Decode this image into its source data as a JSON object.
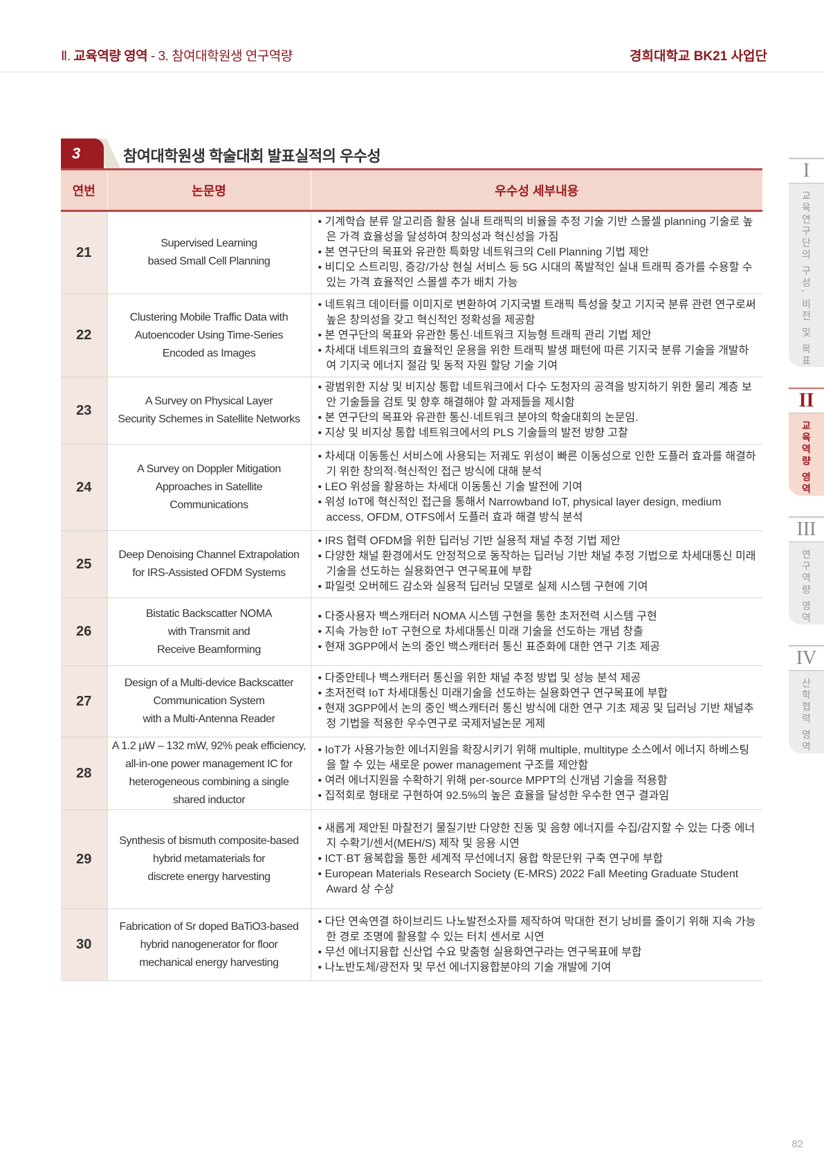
{
  "header": {
    "crumb_roman": "Ⅱ.",
    "crumb_section": "교육역량 영역",
    "crumb_rest": " - 3. 참여대학원생 연구역량",
    "org": "경희대학교 BK21 사업단"
  },
  "section": {
    "number": "3",
    "title": "참여대학원생 학술대회 발표실적의 우수성"
  },
  "table": {
    "headers": [
      "연번",
      "논문명",
      "우수성 세부내용"
    ],
    "rows": [
      {
        "no": "21",
        "title": "Supervised Learning\nbased Small Cell Planning",
        "details": [
          "기계학습 분류 알고리즘 활용 실내 트래픽의 비율을 추정 기술 기반 스몰셀 planning 기술로 높은 가격 효율성을 달성하여 창의성과 혁신성을 가짐",
          "본 연구단의 목표와 유관한 특화망 네트워크의 Cell Planning 기법 제안",
          "비디오 스트리밍, 증강/가상 현실 서비스 등 5G 시대의 폭발적인 실내 트래픽 증가를 수용할 수 있는 가격 효율적인 스몰셀 추가 배치 가능"
        ]
      },
      {
        "no": "22",
        "title": "Clustering Mobile Traffic Data with\nAutoencoder Using Time-Series\nEncoded as Images",
        "details": [
          "네트워크 데이터를 이미지로 변환하여 기지국별 트래픽 특성을 찾고 기지국 분류 관련 연구로써 높은 창의성을 갖고 혁신적인 정확성을 제공함",
          "본 연구단의 목표와 유관한 통신·네트워크 지능형 트래픽 관리 기법 제안",
          "차세대 네트워크의 효율적인 운용을 위한 트래픽 발생 패턴에 따른 기지국 분류 기술을 개발하여 기지국 에너지 절감 및 동적 자원 할당 기술 기여"
        ]
      },
      {
        "no": "23",
        "title": "A Survey on Physical Layer\nSecurity Schemes in Satellite Networks",
        "details": [
          "광범위한 지상 및 비지상 통합 네트워크에서 다수 도청자의 공격을 방지하기 위한 물리 계층 보안 기술들을 검토 및 향후 해결해야 할 과제들을 제시함",
          "본 연구단의 목표와 유관한 통신·네트워크 분야의 학술대회의 논문임.",
          "지상 및 비지상 통합 네트워크에서의 PLS 기술들의 발전 방향 고찰"
        ]
      },
      {
        "no": "24",
        "title": "A Survey on Doppler Mitigation\nApproaches in Satellite\nCommunications",
        "details": [
          "차세대 이동통신 서비스에 사용되는 저궤도 위성이 빠른 이동성으로 인한 도플러 효과를 해결하기 위한 창의적·혁신적인 접근 방식에 대해 분석",
          "LEO 위성을 활용하는 차세대 이동통신 기술 발전에 기여",
          "위성 IoT에 혁신적인 접근을 통해서 Narrowband IoT, physical layer design, medium access, OFDM, OTFS에서 도플러 효과 해결 방식 분석"
        ]
      },
      {
        "no": "25",
        "title": "Deep Denoising Channel Extrapolation\nfor IRS-Assisted OFDM Systems",
        "details": [
          "IRS 협력 OFDM을 위한 딥러닝 기반 실용적 채널 추정 기법 제안",
          "다양한 채널 환경에서도 안정적으로 동작하는 딥러닝 기반 채널 추정 기법으로 차세대통신 미래기술을 선도하는 실용화연구 연구목표에 부합",
          "파일럿 오버헤드 감소와 실용적 딥러닝 모델로 실제 시스템 구현에 기여"
        ]
      },
      {
        "no": "26",
        "title": "Bistatic Backscatter NOMA\nwith Transmit and\nReceive Beamforming",
        "details": [
          "다중사용자 백스캐터러 NOMA 시스템 구현을 통한 초저전력 시스템 구현",
          "지속 가능한 IoT 구현으로 차세대통신 미래 기술을 선도하는 개념 창출",
          "현재 3GPP에서 논의 중인 백스캐터러 통신 표준화에 대한 연구 기초 제공"
        ]
      },
      {
        "no": "27",
        "title": "Design of a Multi-device Backscatter\nCommunication System\nwith a Multi-Antenna Reader",
        "details": [
          "다중안테나 백스캐터러 통신을 위한 채널 추정 방법 및 성능 분석 제공",
          "초저전력 IoT 차세대통신 미래기술을 선도하는 실용화연구 연구목표에 부합",
          "현재 3GPP에서 논의 중인 백스캐터러 통신 방식에 대한 연구 기초 제공 및 딥러닝 기반 채널추정 기법을 적용한 우수연구로 국제저널논문 게제"
        ]
      },
      {
        "no": "28",
        "title": "A 1.2 μW – 132 mW, 92% peak efficiency,\nall-in-one power management IC for\nheterogeneous combining a single\nshared inductor",
        "details": [
          "IoT가 사용가능한 에너지원을 확장시키기 위해 multiple, multitype 소스에서 에너지 하베스팅을 할 수 있는 새로운 power management 구조를 제안함",
          "여러 에너지원을 수확하기 위해 per-source MPPT의 신개념 기술을 적용함",
          "집적회로 형태로 구현하여 92.5%의 높은 효율을 달성한 우수한 연구 결과임"
        ]
      },
      {
        "no": "29",
        "title": "Synthesis of bismuth composite-based\nhybrid metamaterials for\ndiscrete energy harvesting",
        "details": [
          "새롭게 제안된 마찰전기 물질기반 다양한 진동 및 음향 에너지를 수집/감지할 수 있는 다중 에너지 수확기/센서(MEH/S) 제작 및 응용 시연",
          "ICT·BT 융복합을 통한 세계적 무선에너지 융합 학문단위 구축 연구에 부합",
          "European Materials Research Society (E-MRS) 2022 Fall Meeting Graduate Student Award 상 수상"
        ]
      },
      {
        "no": "30",
        "title": "Fabrication of Sr doped BaTiO3-based\nhybrid nanogenerator for floor\nmechanical energy harvesting",
        "details": [
          "다단 연속연결 하이브리드 나노발전소자를 제작하여 막대한 전기 낭비를 줄이기 위해 지속 가능한 경로 조명에 활용할 수 있는 터치 센서로 시연",
          "무선 에너지융합 신산업 수요 맞춤형 실용화연구라는 연구목표에 부합",
          "나노반도체/광전자 및 무선 에너지융합분야의 기술 개발에 기여"
        ]
      }
    ]
  },
  "side_tabs": [
    {
      "roman": "I",
      "label": "교육연구단의 구성, 비전 및 목표",
      "active": false
    },
    {
      "roman": "II",
      "label": "교육역량 영역",
      "active": true
    },
    {
      "roman": "III",
      "label": "연구역량 영역",
      "active": false
    },
    {
      "roman": "IV",
      "label": "산학협력 영역",
      "active": false
    }
  ],
  "page_number": "82",
  "colors": {
    "accent": "#9c1c22",
    "header_bg": "#f3d6cc",
    "number_bg": "#f4e6e1"
  }
}
